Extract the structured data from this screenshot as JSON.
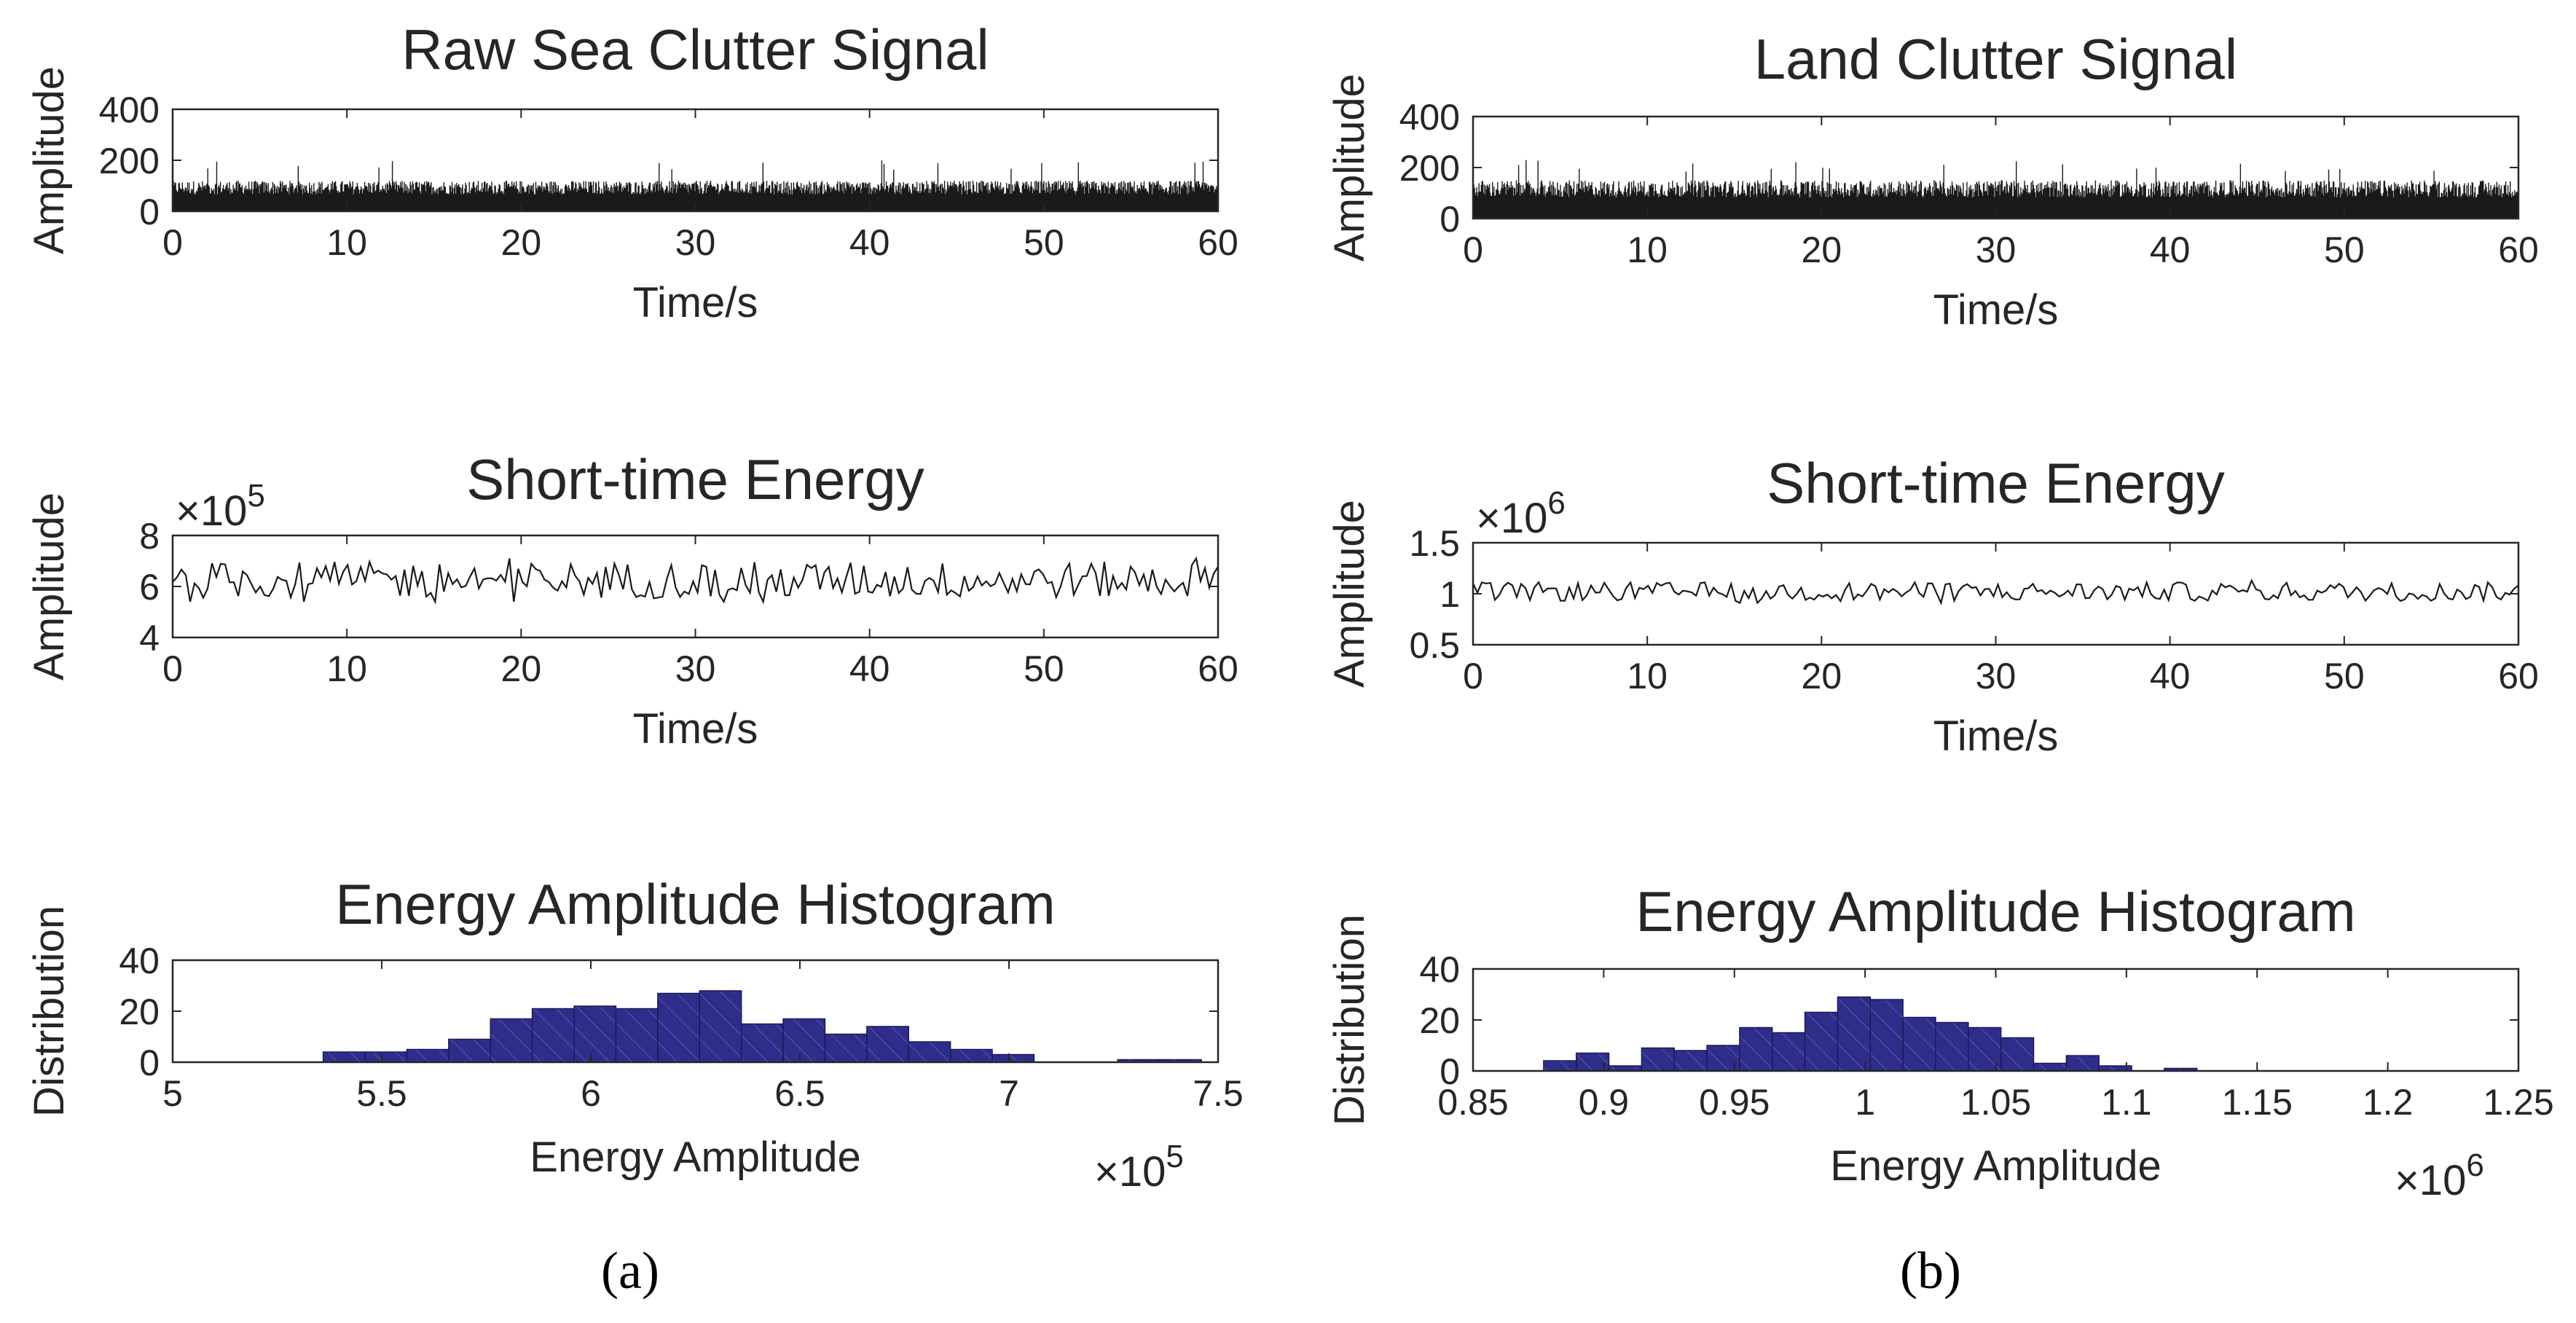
{
  "panel_labels": [
    "(a)",
    "(b)"
  ],
  "colors": {
    "signal": "#1a1a1a",
    "bar_fill": "#2e2e8a",
    "bar_edge": "#1a1a5c",
    "axis": "#262626"
  },
  "chart_data": [
    {
      "id": "a1",
      "type": "area",
      "title": "Raw Sea Clutter Signal",
      "xlabel": "Time/s",
      "ylabel": "Amplitude",
      "xlim": [
        0,
        60
      ],
      "ylim": [
        0,
        400
      ],
      "xticks": [
        0,
        10,
        20,
        30,
        40,
        50,
        60
      ],
      "xtick_labels": [
        "0",
        "10",
        "20",
        "30",
        "40",
        "50",
        "60"
      ],
      "yticks": [
        0,
        200,
        400
      ],
      "ytick_labels": [
        "0",
        "200",
        "400"
      ],
      "envelope": {
        "typical_max": 120,
        "typical_min": 0,
        "peak_max": 200
      }
    },
    {
      "id": "a2",
      "type": "line",
      "title": "Short-time Energy",
      "xlabel": "Time/s",
      "ylabel": "Amplitude",
      "multiplier": "×10",
      "multiplier_exp": "5",
      "xlim": [
        0,
        60
      ],
      "ylim": [
        4,
        8
      ],
      "xticks": [
        0,
        10,
        20,
        30,
        40,
        50,
        60
      ],
      "xtick_labels": [
        "0",
        "10",
        "20",
        "30",
        "40",
        "50",
        "60"
      ],
      "yticks": [
        4,
        6,
        8
      ],
      "ytick_labels": [
        "4",
        "6",
        "8"
      ],
      "series_stats": {
        "mean": 6.25,
        "min": 5.4,
        "max": 7.4,
        "points": 240
      }
    },
    {
      "id": "a3",
      "type": "bar",
      "title": "Energy Amplitude Histogram",
      "xlabel": "Energy Amplitude",
      "ylabel": "Distribution",
      "multiplier": "×10",
      "multiplier_exp": "5",
      "xlim": [
        5,
        7.5
      ],
      "ylim": [
        0,
        40
      ],
      "xticks": [
        5,
        5.5,
        6,
        6.5,
        7,
        7.5
      ],
      "xtick_labels": [
        "5",
        "5.5",
        "6",
        "6.5",
        "7",
        "7.5"
      ],
      "yticks": [
        0,
        20,
        40
      ],
      "ytick_labels": [
        "0",
        "20",
        "40"
      ],
      "bin_start": 5.36,
      "bin_width": 0.1,
      "values": [
        4,
        4,
        5,
        9,
        17,
        21,
        22,
        21,
        27,
        28,
        15,
        17,
        11,
        14,
        8,
        5,
        3,
        0,
        0,
        1,
        1
      ]
    },
    {
      "id": "b1",
      "type": "area",
      "title": "Land Clutter Signal",
      "xlabel": "Time/s",
      "ylabel": "Amplitude",
      "xlim": [
        0,
        60
      ],
      "ylim": [
        0,
        400
      ],
      "xticks": [
        0,
        10,
        20,
        30,
        40,
        50,
        60
      ],
      "xtick_labels": [
        "0",
        "10",
        "20",
        "30",
        "40",
        "50",
        "60"
      ],
      "yticks": [
        0,
        200,
        400
      ],
      "ytick_labels": [
        "0",
        "200",
        "400"
      ],
      "envelope": {
        "typical_max": 150,
        "typical_min": 0,
        "peak_max": 230
      }
    },
    {
      "id": "b2",
      "type": "line",
      "title": "Short-time Energy",
      "xlabel": "Time/s",
      "ylabel": "Amplitude",
      "multiplier": "×10",
      "multiplier_exp": "6",
      "xlim": [
        0,
        60
      ],
      "ylim": [
        0.5,
        1.5
      ],
      "xticks": [
        0,
        10,
        20,
        30,
        40,
        50,
        60
      ],
      "xtick_labels": [
        "0",
        "10",
        "20",
        "30",
        "40",
        "50",
        "60"
      ],
      "yticks": [
        0.5,
        1,
        1.5
      ],
      "ytick_labels": [
        "0.5",
        "1",
        "1.5"
      ],
      "series_stats": {
        "mean": 1.02,
        "min": 0.9,
        "max": 1.13,
        "points": 240
      }
    },
    {
      "id": "b3",
      "type": "bar",
      "title": "Energy Amplitude Histogram",
      "xlabel": "Energy Amplitude",
      "ylabel": "Distribution",
      "multiplier": "×10",
      "multiplier_exp": "6",
      "xlim": [
        0.85,
        1.25
      ],
      "ylim": [
        0,
        40
      ],
      "xticks": [
        0.85,
        0.9,
        0.95,
        1,
        1.05,
        1.1,
        1.15,
        1.2,
        1.25
      ],
      "xtick_labels": [
        "0.85",
        "0.9",
        "0.95",
        "1",
        "1.05",
        "1.1",
        "1.15",
        "1.2",
        "1.25"
      ],
      "yticks": [
        0,
        20,
        40
      ],
      "ytick_labels": [
        "0",
        "20",
        "40"
      ],
      "bin_start": 0.877,
      "bin_width": 0.0125,
      "values": [
        4,
        7,
        2,
        9,
        8,
        10,
        17,
        15,
        23,
        29,
        28,
        21,
        19,
        17,
        13,
        3,
        6,
        2,
        0,
        1
      ]
    }
  ]
}
